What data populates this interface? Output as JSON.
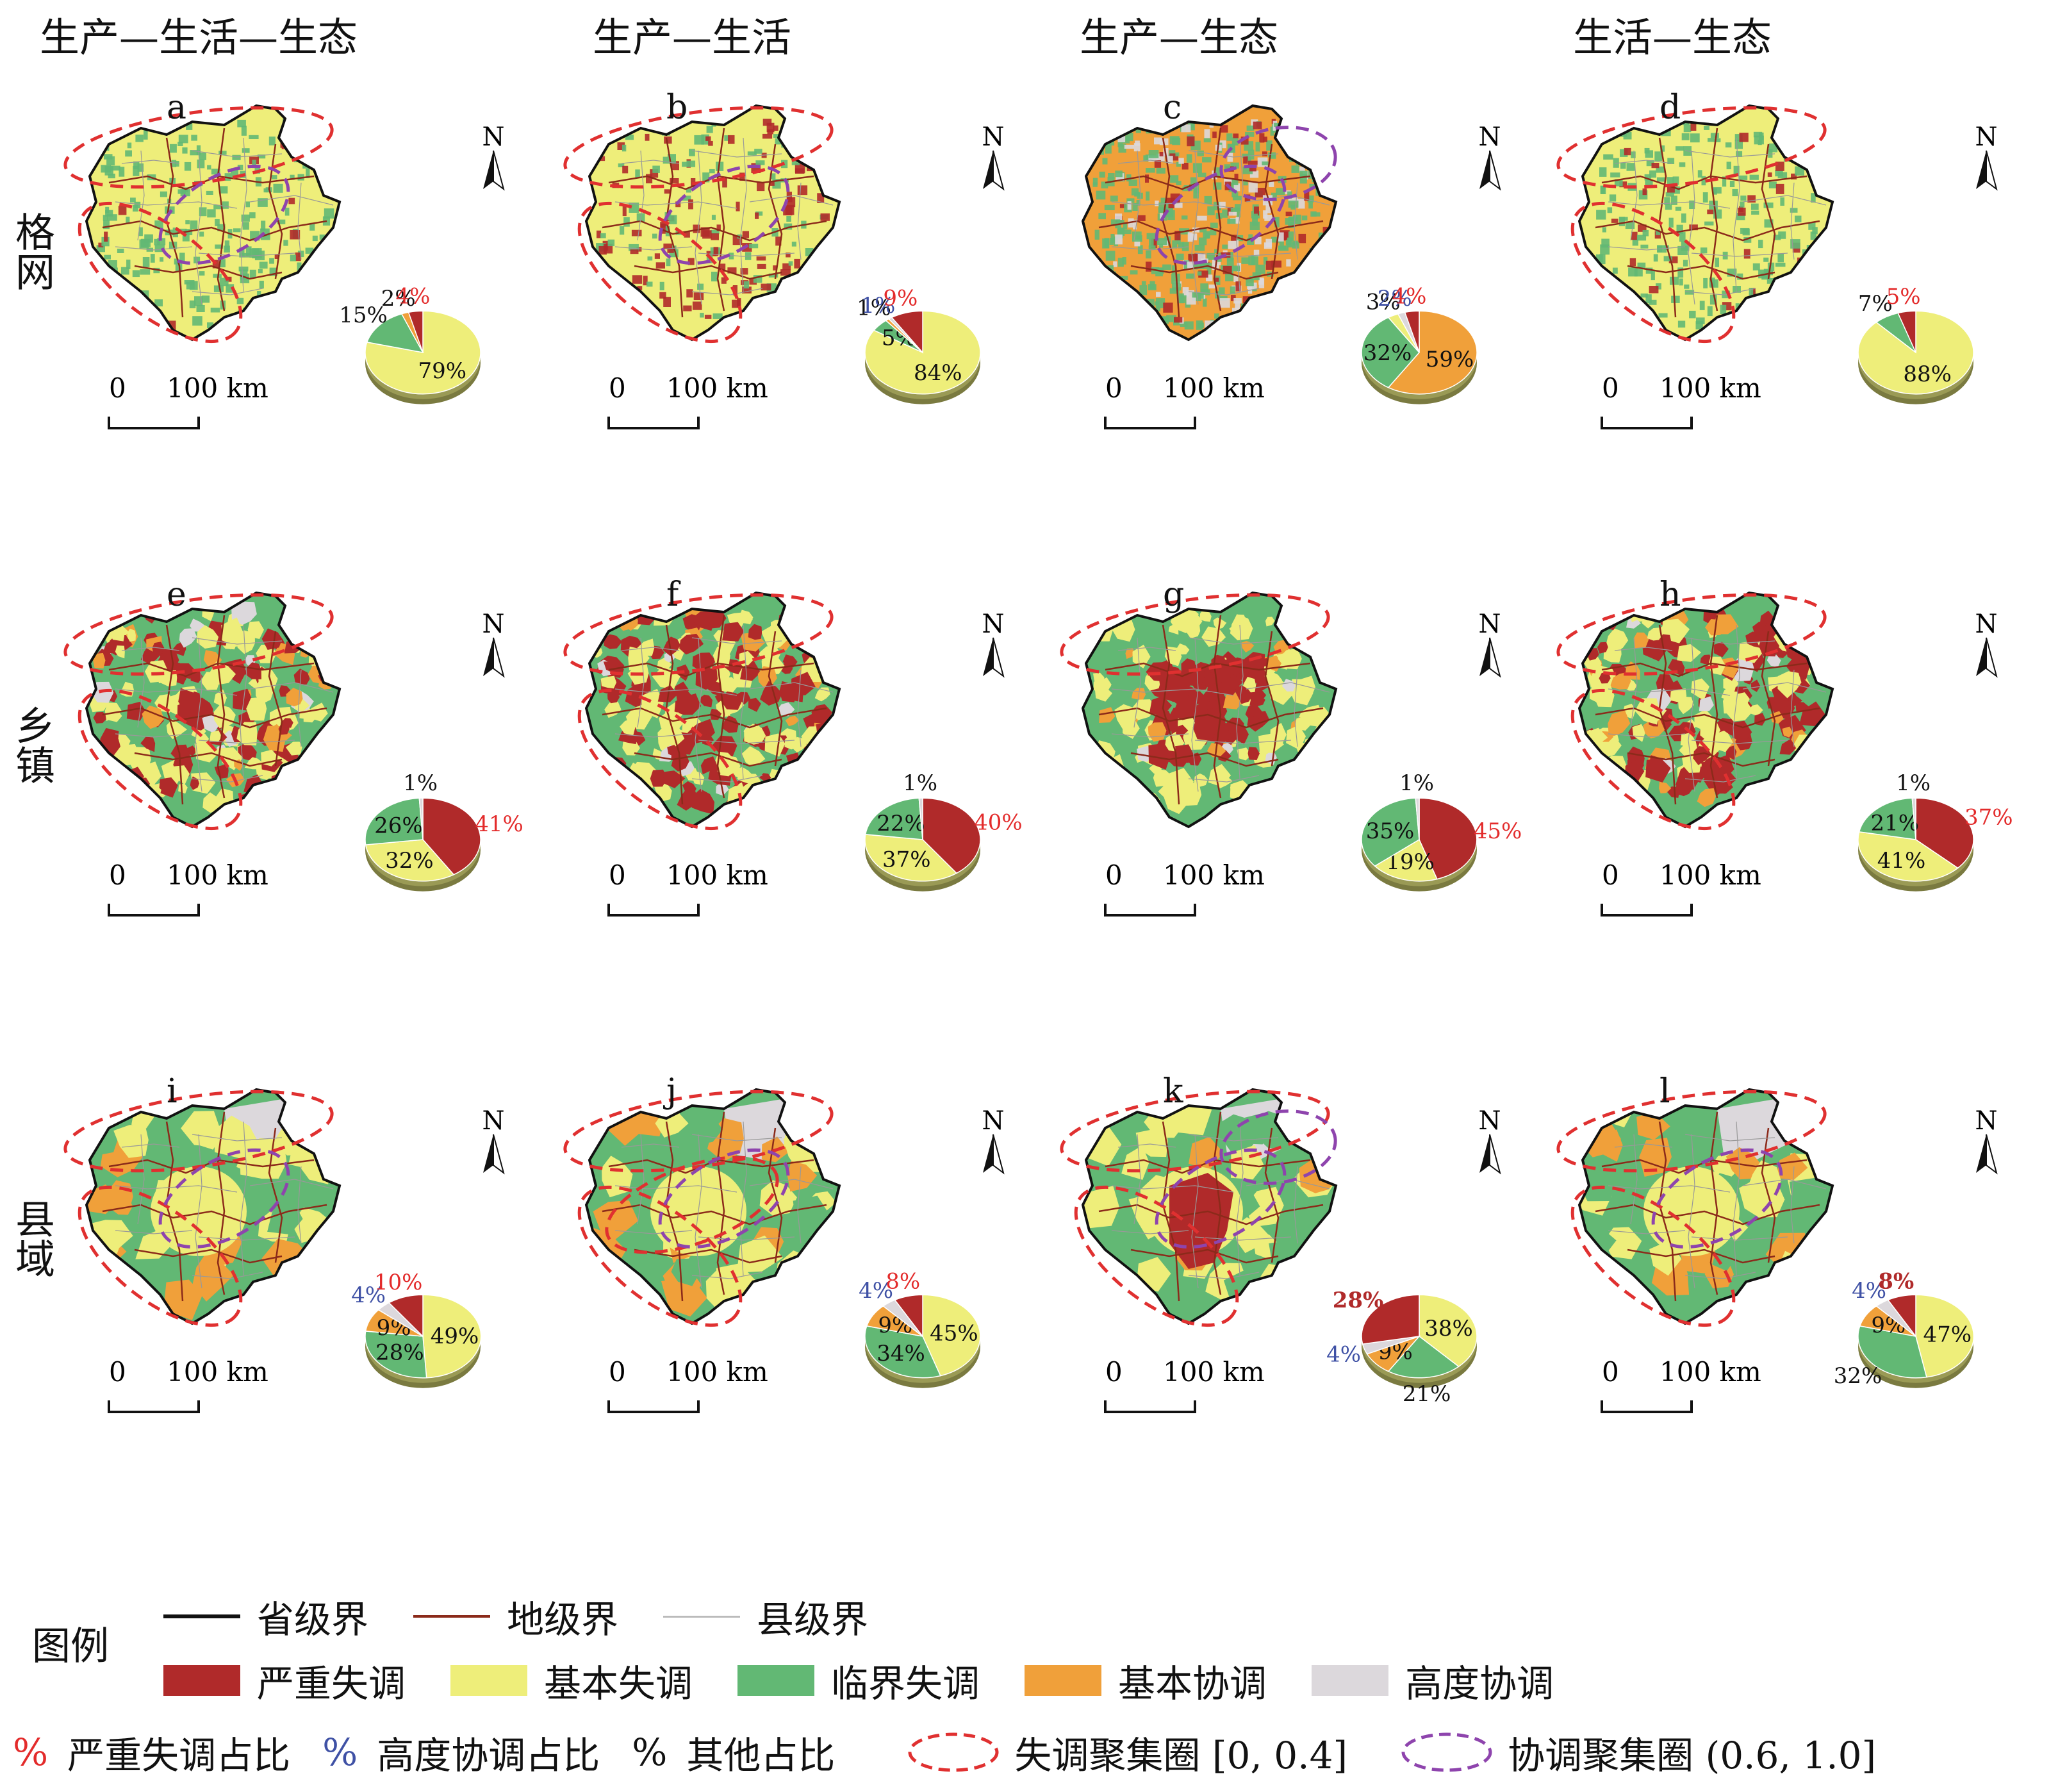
{
  "columns": [
    "生产—生活—生态",
    "生产—生活",
    "生产—生态",
    "生活—生态"
  ],
  "rows": [
    "格网",
    "乡镇",
    "县域"
  ],
  "colors": {
    "severe": "#b02a2a",
    "basic_imbalance": "#eeee7a",
    "critical": "#62b874",
    "basic_coord": "#f0a03a",
    "high_coord": "#dcd8dc",
    "red_pct": "#e32b2b",
    "blue_pct": "#3f51a5",
    "dys_circle": "#e03030",
    "coord_circle": "#8e44ad"
  },
  "north_label": "N",
  "scale": {
    "zero": "0",
    "km": "100 km"
  },
  "panels": [
    {
      "letter": "a",
      "style": "grid",
      "values": [
        {
          "v": 79,
          "c": "basic_imbalance",
          "label": "79%",
          "cls": "in"
        },
        {
          "v": 15,
          "c": "critical",
          "label": "15%",
          "cls": "out"
        },
        {
          "v": 2,
          "c": "basic_coord",
          "label": "2%",
          "cls": "out"
        },
        {
          "v": 4,
          "c": "severe",
          "label": "4%",
          "cls": "red"
        }
      ],
      "dys": 2,
      "coord": 1
    },
    {
      "letter": "b",
      "style": "grid-red",
      "values": [
        {
          "v": 84,
          "c": "basic_imbalance",
          "label": "84%",
          "cls": "in"
        },
        {
          "v": 5,
          "c": "critical",
          "label": "5%",
          "cls": "in"
        },
        {
          "v": 1,
          "c": "basic_coord",
          "label": "1%",
          "cls": "out"
        },
        {
          "v": 1,
          "c": "high_coord",
          "label": "1%",
          "cls": "blue"
        },
        {
          "v": 9,
          "c": "severe",
          "label": "9%",
          "cls": "red"
        }
      ],
      "dys": 2,
      "coord": 1
    },
    {
      "letter": "c",
      "style": "grid-orange",
      "values": [
        {
          "v": 59,
          "c": "basic_coord",
          "label": "59%",
          "cls": "in"
        },
        {
          "v": 32,
          "c": "critical",
          "label": "32%",
          "cls": "in"
        },
        {
          "v": 3,
          "c": "basic_imbalance",
          "label": "3%",
          "cls": "out"
        },
        {
          "v": 2,
          "c": "high_coord",
          "label": "2%",
          "cls": "blue"
        },
        {
          "v": 4,
          "c": "severe",
          "label": "4%",
          "cls": "red"
        }
      ],
      "dys": 0,
      "coord": 2
    },
    {
      "letter": "d",
      "style": "grid",
      "values": [
        {
          "v": 88,
          "c": "basic_imbalance",
          "label": "88%",
          "cls": "in"
        },
        {
          "v": 7,
          "c": "critical",
          "label": "7%",
          "cls": "out"
        },
        {
          "v": 5,
          "c": "severe",
          "label": "5%",
          "cls": "red"
        }
      ],
      "dys": 2,
      "coord": 0
    },
    {
      "letter": "e",
      "style": "town",
      "values": [
        {
          "v": 41,
          "c": "severe",
          "label": "41%",
          "cls": "red"
        },
        {
          "v": 32,
          "c": "basic_imbalance",
          "label": "32%",
          "cls": "in"
        },
        {
          "v": 26,
          "c": "critical",
          "label": "26%",
          "cls": "in"
        },
        {
          "v": 1,
          "c": "high_coord",
          "label": "1%",
          "cls": "out"
        }
      ],
      "dys": 2,
      "coord": 0
    },
    {
      "letter": "f",
      "style": "town",
      "values": [
        {
          "v": 40,
          "c": "severe",
          "label": "40%",
          "cls": "red"
        },
        {
          "v": 37,
          "c": "basic_imbalance",
          "label": "37%",
          "cls": "in"
        },
        {
          "v": 22,
          "c": "critical",
          "label": "22%",
          "cls": "in"
        },
        {
          "v": 1,
          "c": "high_coord",
          "label": "1%",
          "cls": "out"
        }
      ],
      "dys": 2,
      "coord": 0
    },
    {
      "letter": "g",
      "style": "town-center",
      "values": [
        {
          "v": 45,
          "c": "severe",
          "label": "45%",
          "cls": "red"
        },
        {
          "v": 19,
          "c": "basic_imbalance",
          "label": "19%",
          "cls": "in"
        },
        {
          "v": 35,
          "c": "critical",
          "label": "35%",
          "cls": "in"
        },
        {
          "v": 1,
          "c": "high_coord",
          "label": "1%",
          "cls": "out"
        }
      ],
      "dys": 1,
      "coord": 0
    },
    {
      "letter": "h",
      "style": "town",
      "values": [
        {
          "v": 37,
          "c": "severe",
          "label": "37%",
          "cls": "red"
        },
        {
          "v": 41,
          "c": "basic_imbalance",
          "label": "41%",
          "cls": "in"
        },
        {
          "v": 21,
          "c": "critical",
          "label": "21%",
          "cls": "in"
        },
        {
          "v": 1,
          "c": "high_coord",
          "label": "1%",
          "cls": "out"
        }
      ],
      "dys": 2,
      "coord": 0
    },
    {
      "letter": "i",
      "style": "county",
      "values": [
        {
          "v": 49,
          "c": "basic_imbalance",
          "label": "49%",
          "cls": "in"
        },
        {
          "v": 28,
          "c": "critical",
          "label": "28%",
          "cls": "in"
        },
        {
          "v": 9,
          "c": "basic_coord",
          "label": "9%",
          "cls": "in"
        },
        {
          "v": 4,
          "c": "high_coord",
          "label": "4%",
          "cls": "blue"
        },
        {
          "v": 10,
          "c": "severe",
          "label": "10%",
          "cls": "red"
        }
      ],
      "dys": 2,
      "coord": 1
    },
    {
      "letter": "j",
      "style": "county",
      "values": [
        {
          "v": 45,
          "c": "basic_imbalance",
          "label": "45%",
          "cls": "in"
        },
        {
          "v": 34,
          "c": "critical",
          "label": "34%",
          "cls": "in"
        },
        {
          "v": 9,
          "c": "basic_coord",
          "label": "9%",
          "cls": "in"
        },
        {
          "v": 4,
          "c": "high_coord",
          "label": "4%",
          "cls": "blue"
        },
        {
          "v": 8,
          "c": "severe",
          "label": "8%",
          "cls": "red"
        }
      ],
      "dys": 3,
      "coord": 1
    },
    {
      "letter": "k",
      "style": "county-red",
      "values": [
        {
          "v": 38,
          "c": "basic_imbalance",
          "label": "38%",
          "cls": "in"
        },
        {
          "v": 21,
          "c": "critical",
          "label": "21%",
          "cls": "out"
        },
        {
          "v": 9,
          "c": "basic_coord",
          "label": "9%",
          "cls": "in"
        },
        {
          "v": 4,
          "c": "high_coord",
          "label": "4%",
          "cls": "blue"
        },
        {
          "v": 28,
          "c": "severe",
          "label": "28%",
          "cls": "redbold"
        }
      ],
      "dys": 2,
      "coord": 2
    },
    {
      "letter": "l",
      "style": "county",
      "values": [
        {
          "v": 47,
          "c": "basic_imbalance",
          "label": "47%",
          "cls": "in"
        },
        {
          "v": 32,
          "c": "critical",
          "label": "32%",
          "cls": "out"
        },
        {
          "v": 9,
          "c": "basic_coord",
          "label": "9%",
          "cls": "in"
        },
        {
          "v": 4,
          "c": "high_coord",
          "label": "4%",
          "cls": "blue"
        },
        {
          "v": 8,
          "c": "severe",
          "label": "8%",
          "cls": "redbold"
        }
      ],
      "dys": 2,
      "coord": 1
    }
  ],
  "legend": {
    "title": "图例",
    "lines": [
      {
        "label": "省级界",
        "color": "#111111",
        "w": 6
      },
      {
        "label": "地级界",
        "color": "#8b2a1a",
        "w": 4
      },
      {
        "label": "县级界",
        "color": "#bbbbbb",
        "w": 3
      }
    ],
    "classes": [
      {
        "label": "严重失调",
        "key": "severe"
      },
      {
        "label": "基本失调",
        "key": "basic_imbalance"
      },
      {
        "label": "临界失调",
        "key": "critical"
      },
      {
        "label": "基本协调",
        "key": "basic_coord"
      },
      {
        "label": "高度协调",
        "key": "high_coord"
      }
    ],
    "pct": [
      {
        "symbol": "%",
        "label": "严重失调占比",
        "key": "red_pct"
      },
      {
        "symbol": "%",
        "label": "高度协调占比",
        "key": "blue_pct"
      },
      {
        "symbol": "%",
        "label": "其他占比",
        "key": "black"
      }
    ],
    "circles": [
      {
        "label": "失调聚集圈 [0, 0.4]",
        "key": "dys_circle"
      },
      {
        "label": "协调聚集圈 (0.6, 1.0]",
        "key": "coord_circle"
      }
    ]
  }
}
